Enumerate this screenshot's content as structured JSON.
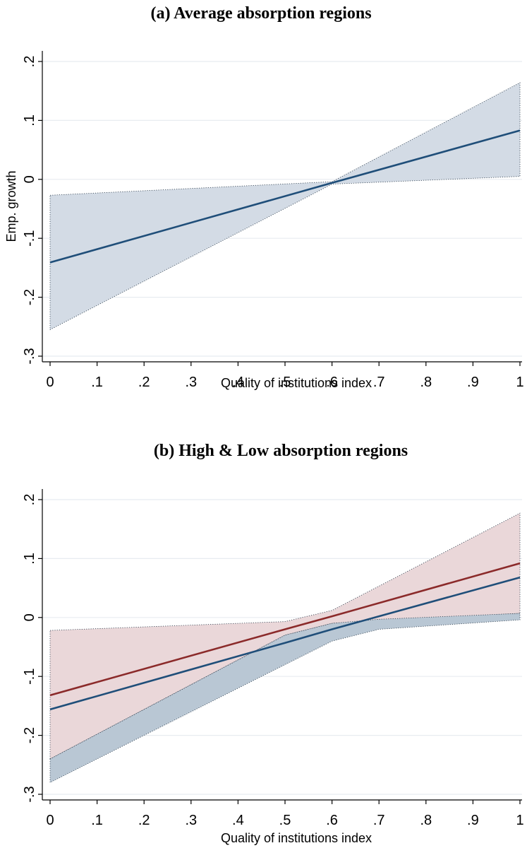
{
  "chart_data": [
    {
      "type": "line",
      "title": "(a) Average absorption regions",
      "xlabel": "Quality of institutions index",
      "ylabel": "Emp. growth",
      "xlim": [
        0,
        1
      ],
      "ylim": [
        -0.3,
        0.2
      ],
      "x_ticks": [
        0,
        0.1,
        0.2,
        0.3,
        0.4,
        0.5,
        0.6,
        0.7,
        0.8,
        0.9,
        1
      ],
      "x_tick_labels": [
        "0",
        ".1",
        ".2",
        ".3",
        ".4",
        ".5",
        ".6",
        ".7",
        ".8",
        ".9",
        "1"
      ],
      "y_ticks": [
        -0.3,
        -0.2,
        -0.1,
        0,
        0.1,
        0.2
      ],
      "y_tick_labels": [
        "-.3",
        "-.2",
        "-.1",
        "0",
        ".1",
        ".2"
      ],
      "grid": true,
      "series": [
        {
          "color": "#1f4e79",
          "band_color": "#d3dbe5",
          "x": [
            0,
            0.6,
            1
          ],
          "y": [
            -0.141,
            -0.006,
            0.083
          ],
          "lower": [
            -0.255,
            -0.008,
            0.005
          ],
          "upper": [
            -0.027,
            -0.004,
            0.164
          ]
        }
      ]
    },
    {
      "type": "line",
      "title": "(b) High & Low absorption regions",
      "xlabel": "Quality of institutions index",
      "ylabel": "",
      "xlim": [
        0,
        1
      ],
      "ylim": [
        -0.3,
        0.2
      ],
      "x_ticks": [
        0,
        0.1,
        0.2,
        0.3,
        0.4,
        0.5,
        0.6,
        0.7,
        0.8,
        0.9,
        1
      ],
      "x_tick_labels": [
        "0",
        ".1",
        ".2",
        ".3",
        ".4",
        ".5",
        ".6",
        ".7",
        ".8",
        ".9",
        "1"
      ],
      "y_ticks": [
        -0.3,
        -0.2,
        -0.1,
        0,
        0.1,
        0.2
      ],
      "y_tick_labels": [
        "-.3",
        "-.2",
        "-.1",
        "0",
        ".1",
        ".2"
      ],
      "grid": true,
      "series": [
        {
          "color": "#8b2a2a",
          "band_color": "#ead7d9",
          "x": [
            0,
            0.5,
            0.6,
            1
          ],
          "y": [
            -0.132,
            -0.02,
            0.002,
            0.092
          ],
          "lower": [
            -0.24,
            -0.03,
            -0.01,
            0.007
          ],
          "upper": [
            -0.022,
            -0.007,
            0.012,
            0.177
          ]
        },
        {
          "color": "#1f4e79",
          "band_color": "#b9c7d4",
          "x": [
            0,
            0.5,
            0.6,
            0.7,
            1
          ],
          "y": [
            -0.156,
            -0.043,
            -0.02,
            0.002,
            0.068
          ],
          "lower": [
            -0.28,
            -0.08,
            -0.04,
            -0.02,
            -0.004
          ],
          "upper": [
            -0.24,
            -0.03,
            -0.01,
            -0.003,
            0.007
          ]
        }
      ]
    }
  ]
}
